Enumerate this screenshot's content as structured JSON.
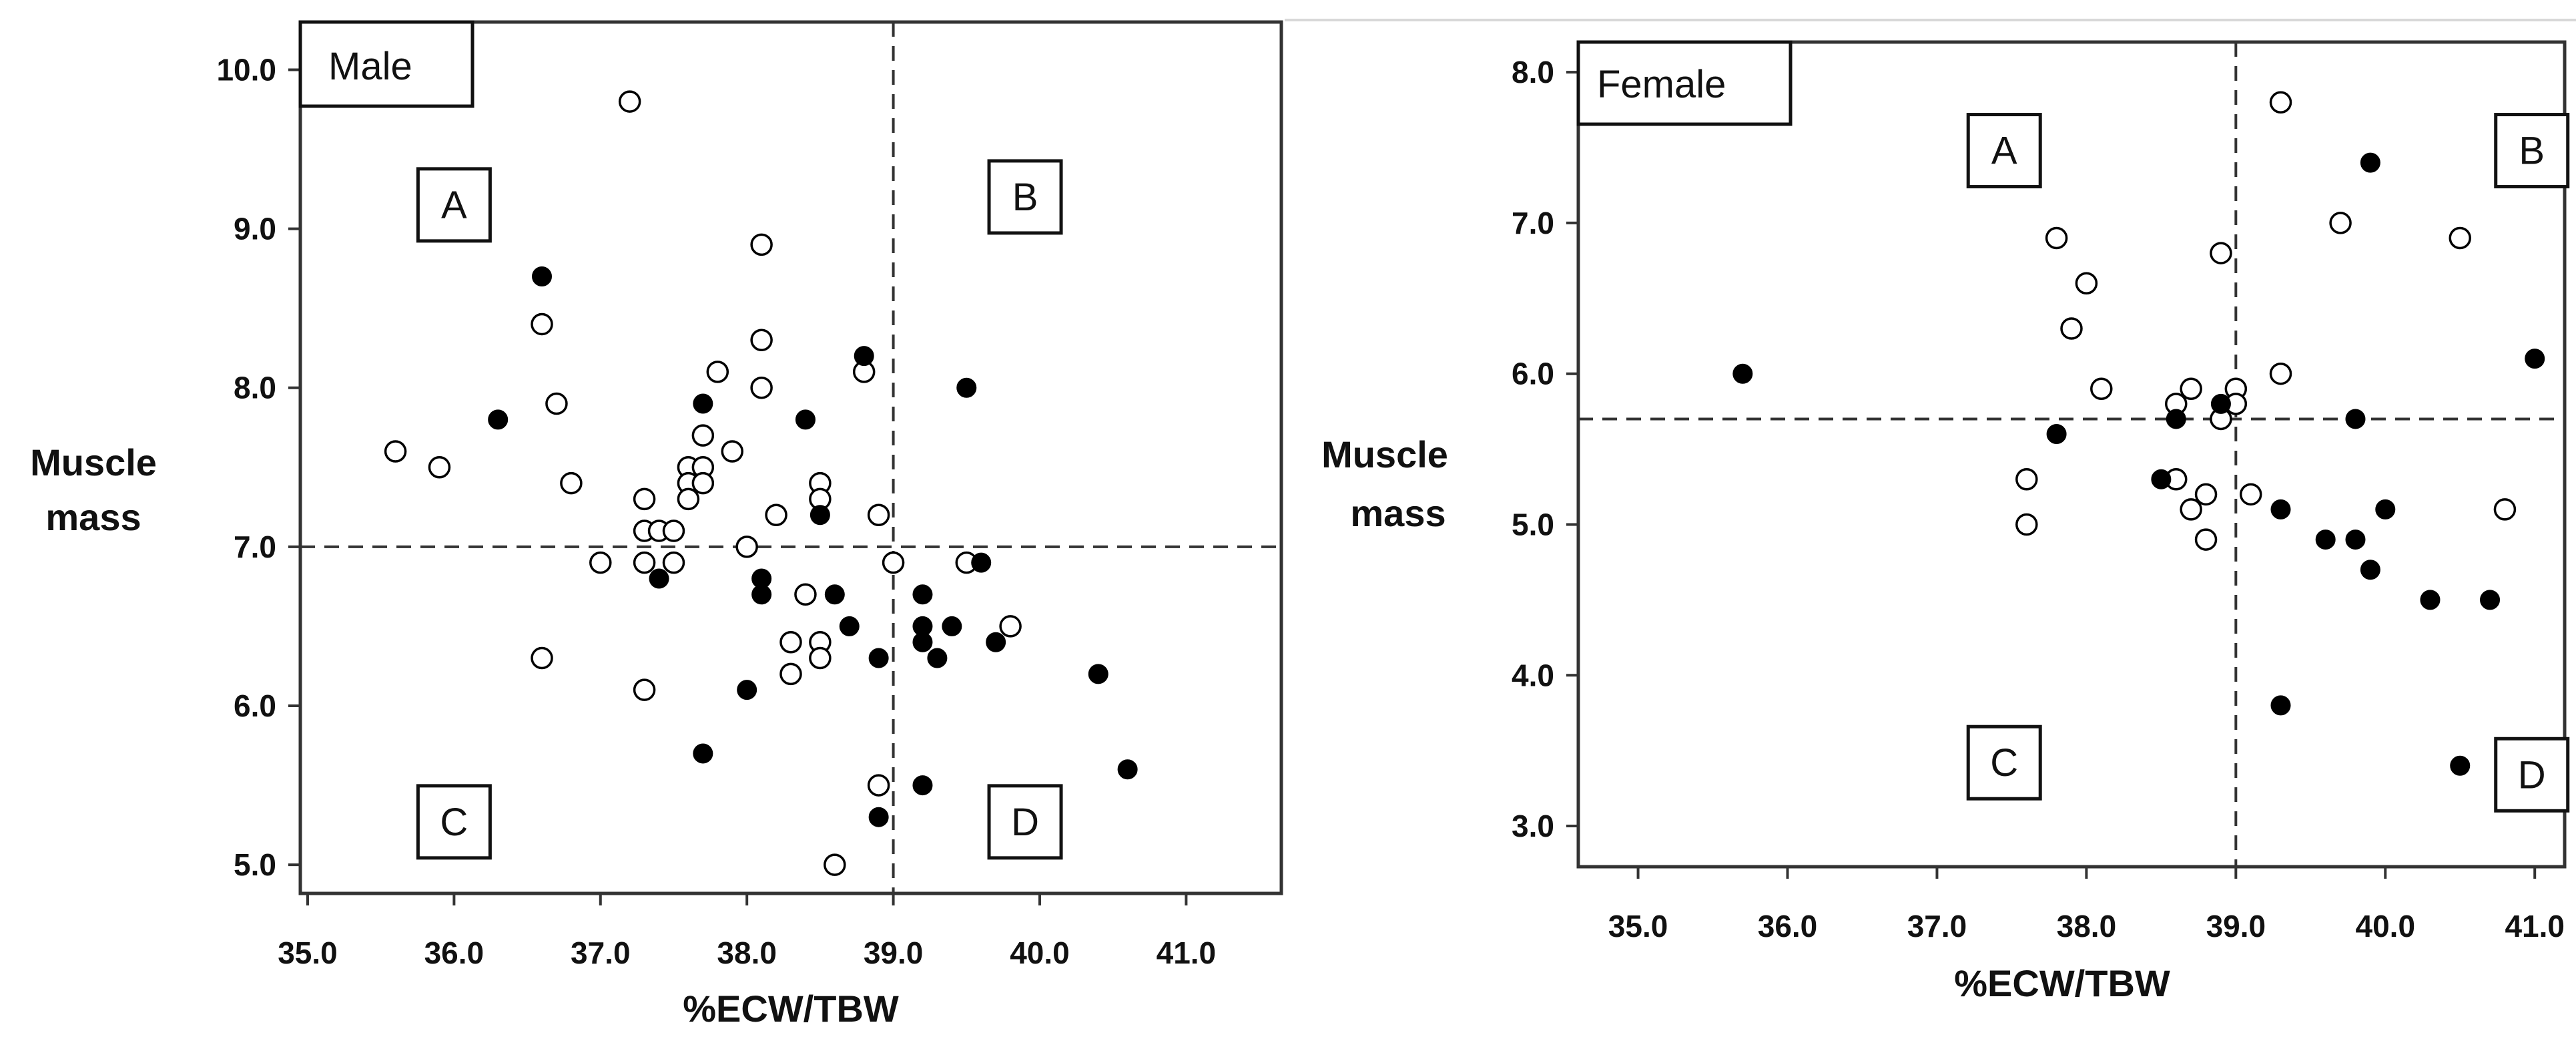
{
  "chart_data": [
    {
      "type": "scatter",
      "panel_label": "Male",
      "xlabel": "%ECW/TBW",
      "ylabel_lines": [
        "Muscle",
        "mass"
      ],
      "xlim": [
        34.95,
        41.65
      ],
      "ylim": [
        4.82,
        10.3
      ],
      "x_ticks": [
        "35.0",
        "36.0",
        "37.0",
        "38.0",
        "39.0",
        "40.0",
        "41.0"
      ],
      "y_ticks": [
        "5.0",
        "6.0",
        "7.0",
        "8.0",
        "9.0",
        "10.0"
      ],
      "reference_lines": {
        "x": 39.0,
        "y": 7.0
      },
      "quadrant_labels": [
        {
          "text": "A",
          "x": 36.0,
          "y": 9.15
        },
        {
          "text": "B",
          "x": 39.9,
          "y": 9.2
        },
        {
          "text": "C",
          "x": 36.0,
          "y": 5.27
        },
        {
          "text": "D",
          "x": 39.9,
          "y": 5.27
        }
      ],
      "series": [
        {
          "name": "open",
          "marker": "open-circle",
          "points": [
            [
              35.6,
              7.6
            ],
            [
              35.9,
              7.5
            ],
            [
              36.6,
              8.4
            ],
            [
              36.7,
              7.9
            ],
            [
              36.8,
              7.4
            ],
            [
              36.6,
              6.3
            ],
            [
              37.0,
              6.9
            ],
            [
              37.2,
              9.8
            ],
            [
              37.3,
              7.3
            ],
            [
              37.3,
              7.1
            ],
            [
              37.3,
              6.9
            ],
            [
              37.3,
              6.1
            ],
            [
              37.4,
              7.1
            ],
            [
              37.5,
              7.1
            ],
            [
              37.5,
              6.9
            ],
            [
              37.6,
              7.5
            ],
            [
              37.6,
              7.4
            ],
            [
              37.6,
              7.3
            ],
            [
              37.7,
              7.7
            ],
            [
              37.7,
              7.5
            ],
            [
              37.7,
              7.4
            ],
            [
              37.8,
              8.1
            ],
            [
              37.9,
              7.6
            ],
            [
              38.0,
              7.0
            ],
            [
              38.1,
              8.9
            ],
            [
              38.1,
              8.3
            ],
            [
              38.1,
              8.0
            ],
            [
              38.2,
              7.2
            ],
            [
              38.3,
              6.4
            ],
            [
              38.3,
              6.2
            ],
            [
              38.4,
              6.7
            ],
            [
              38.5,
              7.4
            ],
            [
              38.5,
              7.3
            ],
            [
              38.5,
              6.4
            ],
            [
              38.5,
              6.3
            ],
            [
              38.8,
              8.1
            ],
            [
              38.9,
              7.2
            ],
            [
              38.9,
              5.5
            ],
            [
              39.0,
              6.9
            ],
            [
              38.6,
              5.0
            ],
            [
              39.5,
              6.9
            ],
            [
              39.8,
              6.5
            ]
          ]
        },
        {
          "name": "filled",
          "marker": "filled-circle",
          "points": [
            [
              36.3,
              7.8
            ],
            [
              36.6,
              8.7
            ],
            [
              37.4,
              6.8
            ],
            [
              37.7,
              7.9
            ],
            [
              37.7,
              5.7
            ],
            [
              38.0,
              6.1
            ],
            [
              38.1,
              6.8
            ],
            [
              38.1,
              6.7
            ],
            [
              38.4,
              7.8
            ],
            [
              38.5,
              7.2
            ],
            [
              38.6,
              6.7
            ],
            [
              38.7,
              6.5
            ],
            [
              38.8,
              8.2
            ],
            [
              38.9,
              6.3
            ],
            [
              38.9,
              5.3
            ],
            [
              39.2,
              6.7
            ],
            [
              39.2,
              6.5
            ],
            [
              39.2,
              6.4
            ],
            [
              39.2,
              5.5
            ],
            [
              39.3,
              6.3
            ],
            [
              39.4,
              6.5
            ],
            [
              39.5,
              8.0
            ],
            [
              39.6,
              6.9
            ],
            [
              39.7,
              6.4
            ],
            [
              40.4,
              6.2
            ],
            [
              40.6,
              5.6
            ]
          ]
        }
      ]
    },
    {
      "type": "scatter",
      "panel_label": "Female",
      "xlabel": "%ECW/TBW",
      "ylabel_lines": [
        "Muscle",
        "mass"
      ],
      "xlim": [
        34.6,
        41.2
      ],
      "ylim": [
        2.73,
        8.2
      ],
      "x_ticks": [
        "35.0",
        "36.0",
        "37.0",
        "38.0",
        "39.0",
        "40.0",
        "41.0"
      ],
      "y_ticks": [
        "3.0",
        "4.0",
        "5.0",
        "6.0",
        "7.0",
        "8.0"
      ],
      "reference_lines": {
        "x": 39.0,
        "y": 5.7
      },
      "quadrant_labels": [
        {
          "text": "A",
          "x": 37.45,
          "y": 7.48
        },
        {
          "text": "B",
          "x": 40.98,
          "y": 7.48
        },
        {
          "text": "C",
          "x": 37.45,
          "y": 3.42
        },
        {
          "text": "D",
          "x": 40.98,
          "y": 3.34
        }
      ],
      "series": [
        {
          "name": "open",
          "marker": "open-circle",
          "points": [
            [
              37.6,
              5.3
            ],
            [
              37.6,
              5.0
            ],
            [
              37.8,
              6.9
            ],
            [
              37.9,
              6.3
            ],
            [
              38.0,
              6.6
            ],
            [
              38.1,
              5.9
            ],
            [
              38.6,
              5.8
            ],
            [
              38.6,
              5.3
            ],
            [
              38.7,
              5.9
            ],
            [
              38.7,
              5.1
            ],
            [
              38.8,
              5.2
            ],
            [
              38.8,
              4.9
            ],
            [
              38.9,
              6.8
            ],
            [
              38.9,
              5.7
            ],
            [
              39.0,
              5.9
            ],
            [
              39.0,
              5.8
            ],
            [
              39.1,
              5.2
            ],
            [
              39.3,
              7.8
            ],
            [
              39.3,
              6.0
            ],
            [
              39.7,
              7.0
            ],
            [
              40.5,
              6.9
            ],
            [
              40.8,
              5.1
            ]
          ]
        },
        {
          "name": "filled",
          "marker": "filled-circle",
          "points": [
            [
              35.7,
              6.0
            ],
            [
              37.8,
              5.6
            ],
            [
              38.5,
              5.3
            ],
            [
              38.6,
              5.7
            ],
            [
              38.9,
              5.8
            ],
            [
              39.3,
              5.1
            ],
            [
              39.3,
              3.8
            ],
            [
              39.6,
              4.9
            ],
            [
              39.8,
              5.7
            ],
            [
              39.8,
              4.9
            ],
            [
              39.9,
              7.4
            ],
            [
              39.9,
              4.7
            ],
            [
              40.0,
              5.1
            ],
            [
              40.3,
              4.5
            ],
            [
              40.5,
              3.4
            ],
            [
              40.7,
              4.5
            ],
            [
              41.0,
              6.1
            ]
          ]
        }
      ]
    }
  ]
}
